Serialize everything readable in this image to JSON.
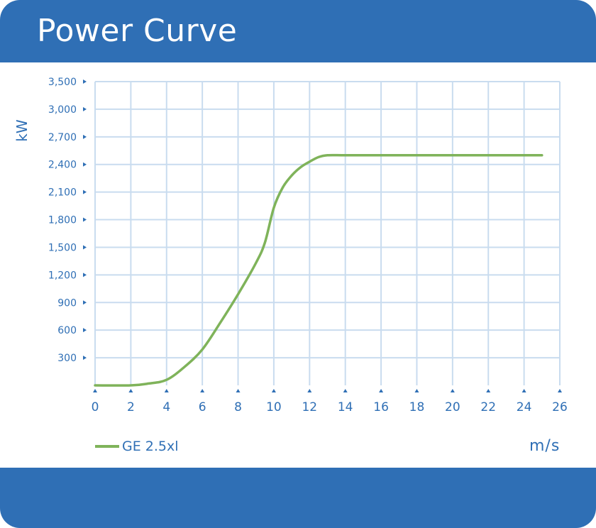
{
  "title": "Power Curve",
  "colors": {
    "header": "#2f6fb5",
    "axis_text": "#2f6fb5",
    "grid": "#c9dcef",
    "series": "#7fb35a"
  },
  "chart_data": {
    "type": "line",
    "xlabel": "m/s",
    "ylabel": "kW",
    "xlim": [
      0,
      26
    ],
    "ylim": [
      0,
      3500
    ],
    "x_ticks": [
      0,
      2,
      4,
      6,
      8,
      10,
      12,
      14,
      16,
      18,
      20,
      22,
      24,
      26
    ],
    "x_tick_labels": [
      "0",
      "2",
      "4",
      "6",
      "8",
      "10",
      "12",
      "14",
      "16",
      "18",
      "20",
      "22",
      "24",
      "26"
    ],
    "y_ticks": [
      300,
      600,
      900,
      1200,
      1500,
      1800,
      2100,
      2400,
      2700,
      3000,
      3500
    ],
    "y_tick_labels": [
      "300",
      "600",
      "900",
      "1,200",
      "1,500",
      "1,800",
      "2,100",
      "2,400",
      "2,700",
      "3,000",
      "3,500"
    ],
    "grid": true,
    "legend_position": "bottom-left",
    "series": [
      {
        "name": "GE 2.5xl",
        "x": [
          0,
          2,
          3,
          4,
          5,
          6,
          7,
          8,
          9,
          9.5,
          10,
          10.5,
          11,
          11.5,
          12,
          12.5,
          13,
          14,
          16,
          18,
          20,
          22,
          24,
          25
        ],
        "y": [
          0,
          0,
          20,
          60,
          200,
          390,
          680,
          990,
          1330,
          1550,
          1930,
          2150,
          2280,
          2370,
          2430,
          2480,
          2500,
          2500,
          2500,
          2500,
          2500,
          2500,
          2500,
          2500
        ]
      }
    ]
  }
}
